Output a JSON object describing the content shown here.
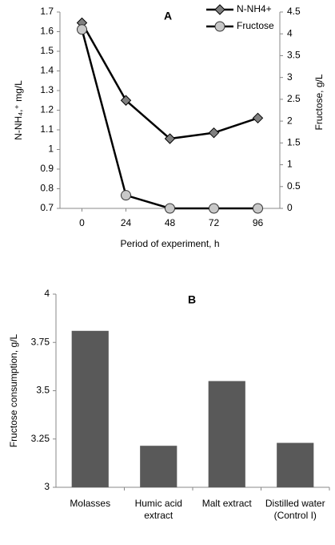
{
  "chart_data": [
    {
      "type": "line",
      "title": "A",
      "x": [
        0,
        24,
        48,
        72,
        96
      ],
      "xlim": [
        -12,
        108
      ],
      "xticks": [
        0,
        24,
        48,
        72,
        96
      ],
      "ylim": [
        0.7,
        1.7
      ],
      "yticks": [
        0.7,
        0.8,
        0.9,
        1,
        1.1,
        1.2,
        1.3,
        1.4,
        1.5,
        1.6,
        1.7
      ],
      "y2lim": [
        0,
        4.5
      ],
      "y2ticks": [
        0,
        0.5,
        1,
        1.5,
        2,
        2.5,
        3,
        3.5,
        4,
        4.5
      ],
      "xlabel": "Period of experiment, h",
      "ylabel": "N-NH₄,⁺ mg/L",
      "y2label": "Fructose, g/L",
      "legend": "top-right",
      "series": [
        {
          "name": "N-NH4+",
          "color": "#808080",
          "marker": "diamond",
          "values": [
            1.645,
            1.25,
            1.055,
            1.085,
            1.16
          ]
        },
        {
          "name": "Fructose",
          "color": "#c8c8c8",
          "marker": "circle",
          "axis": "y2",
          "values": [
            4.1,
            0.3,
            0,
            0,
            0
          ]
        }
      ]
    },
    {
      "type": "bar",
      "title": "B",
      "categories": [
        "Molasses",
        "Humic acid extract",
        "Malt extract",
        "Distilled water (Control I)"
      ],
      "values": [
        3.81,
        3.215,
        3.55,
        3.23
      ],
      "color": "#595959",
      "ylim": [
        3,
        4
      ],
      "yticks": [
        3,
        3.25,
        3.5,
        3.75,
        4
      ],
      "ylabel": "Fructose consumption, g/L"
    }
  ]
}
